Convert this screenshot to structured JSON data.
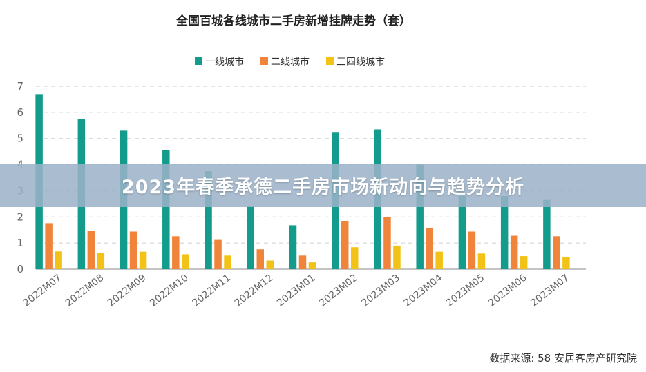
{
  "banner": {
    "title": "2023年春季承德二手房市场新动向与趋势分析"
  },
  "source": "数据来源:  58 安居客房产研究院",
  "colors": {
    "tier1": "#139c8c",
    "tier2": "#ef843a",
    "tier3": "#f3c216"
  },
  "chart_data": {
    "type": "bar",
    "title": "全国百城各线城市二手房新增挂牌走势（套）",
    "categories": [
      "2022M07",
      "2022M08",
      "2022M09",
      "2022M10",
      "2022M11",
      "2022M12",
      "2023M01",
      "2023M02",
      "2023M03",
      "2023M04",
      "2023M05",
      "2023M06",
      "2023M07"
    ],
    "series": [
      {
        "name": "一线城市",
        "values": [
          6.7,
          5.75,
          5.3,
          4.55,
          3.75,
          2.4,
          1.68,
          5.25,
          5.35,
          4.0,
          2.8,
          2.8,
          2.65
        ]
      },
      {
        "name": "二线城市",
        "values": [
          1.76,
          1.47,
          1.44,
          1.26,
          1.12,
          0.76,
          0.52,
          1.85,
          2.0,
          1.58,
          1.44,
          1.28,
          1.26
        ]
      },
      {
        "name": "三四线城市",
        "values": [
          0.68,
          0.62,
          0.67,
          0.57,
          0.52,
          0.33,
          0.26,
          0.84,
          0.9,
          0.67,
          0.6,
          0.5,
          0.47
        ]
      }
    ],
    "yticks": [
      0,
      1,
      2,
      3,
      4,
      5,
      6,
      7
    ],
    "ylim": [
      0,
      7
    ],
    "grid": true,
    "legend_position": "top-center"
  }
}
